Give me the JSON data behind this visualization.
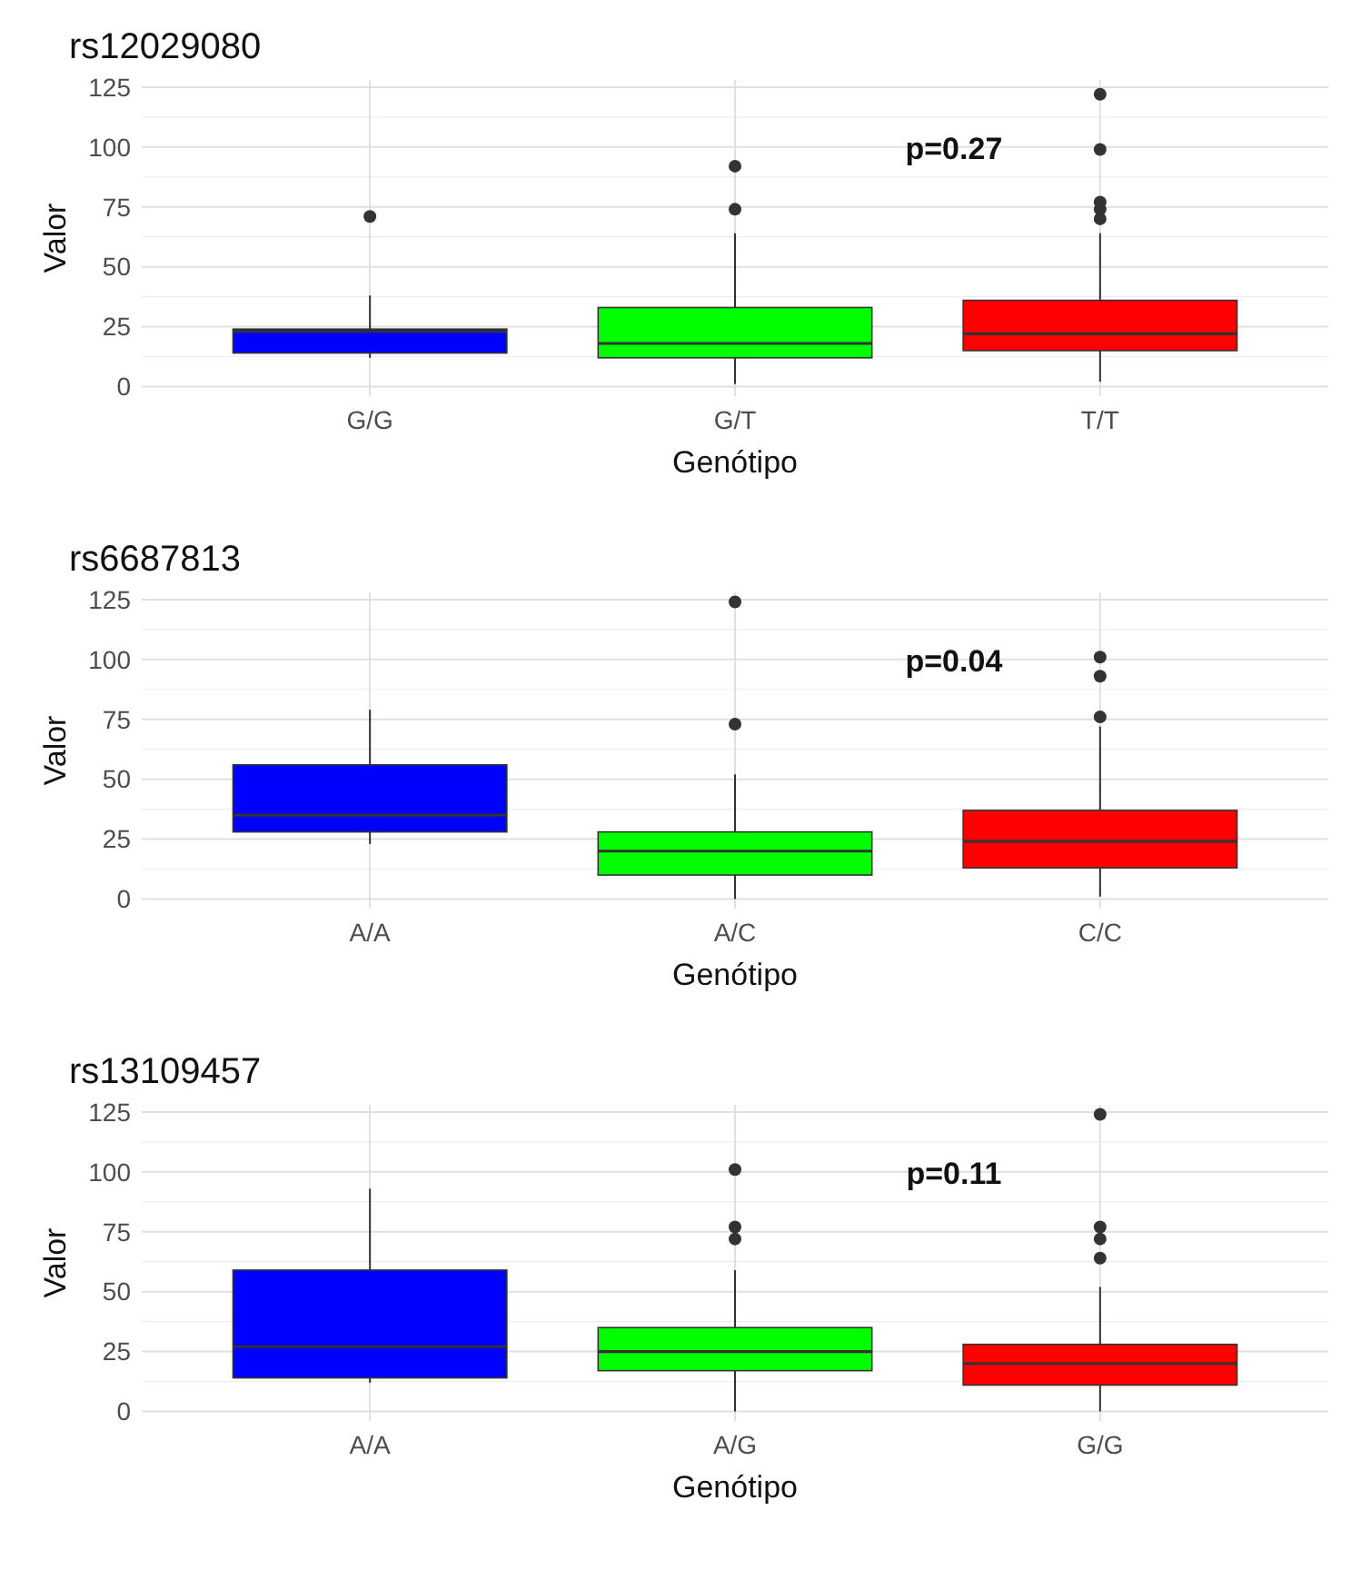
{
  "chart_data": [
    {
      "type": "box",
      "title": "rs12029080",
      "xlabel": "Genótipo",
      "ylabel": "Valor",
      "categories": [
        "G/G",
        "G/T",
        "T/T"
      ],
      "colors": [
        "#0000ff",
        "#00ff00",
        "#ff0000"
      ],
      "ylim": [
        -4,
        128
      ],
      "yticks": [
        0,
        25,
        50,
        75,
        100,
        125
      ],
      "grid": true,
      "annotations": [
        "p=0.27"
      ],
      "boxes": [
        {
          "low": 12,
          "q1": 14,
          "median": 23,
          "q3": 24,
          "high": 38,
          "outliers": [
            71
          ]
        },
        {
          "low": 1,
          "q1": 12,
          "median": 18,
          "q3": 33,
          "high": 64,
          "outliers": [
            74,
            92
          ]
        },
        {
          "low": 2,
          "q1": 15,
          "median": 22,
          "q3": 36,
          "high": 64,
          "outliers": [
            70,
            74,
            77,
            99,
            122
          ]
        }
      ]
    },
    {
      "type": "box",
      "title": "rs6687813",
      "xlabel": "Genótipo",
      "ylabel": "Valor",
      "categories": [
        "A/A",
        "A/C",
        "C/C"
      ],
      "colors": [
        "#0000ff",
        "#00ff00",
        "#ff0000"
      ],
      "ylim": [
        -4,
        128
      ],
      "yticks": [
        0,
        25,
        50,
        75,
        100,
        125
      ],
      "grid": true,
      "annotations": [
        "p=0.04"
      ],
      "boxes": [
        {
          "low": 23,
          "q1": 28,
          "median": 35,
          "q3": 56,
          "high": 79
        },
        {
          "low": 0,
          "q1": 10,
          "median": 20,
          "q3": 28,
          "high": 52,
          "outliers": [
            73,
            124
          ]
        },
        {
          "low": 1,
          "q1": 13,
          "median": 24,
          "q3": 37,
          "high": 72,
          "outliers": [
            76,
            93,
            101
          ]
        }
      ]
    },
    {
      "type": "box",
      "title": "rs13109457",
      "xlabel": "Genótipo",
      "ylabel": "Valor",
      "categories": [
        "A/A",
        "A/G",
        "G/G"
      ],
      "colors": [
        "#0000ff",
        "#00ff00",
        "#ff0000"
      ],
      "ylim": [
        -4,
        128
      ],
      "yticks": [
        0,
        25,
        50,
        75,
        100,
        125
      ],
      "grid": true,
      "annotations": [
        "p=0.11"
      ],
      "boxes": [
        {
          "low": 12,
          "q1": 14,
          "median": 27,
          "q3": 59,
          "high": 93
        },
        {
          "low": 0,
          "q1": 17,
          "median": 25,
          "q3": 35,
          "high": 59,
          "outliers": [
            72,
            77,
            101
          ]
        },
        {
          "low": 0,
          "q1": 11,
          "median": 20,
          "q3": 28,
          "high": 52,
          "outliers": [
            64,
            72,
            77,
            124
          ]
        }
      ]
    }
  ]
}
